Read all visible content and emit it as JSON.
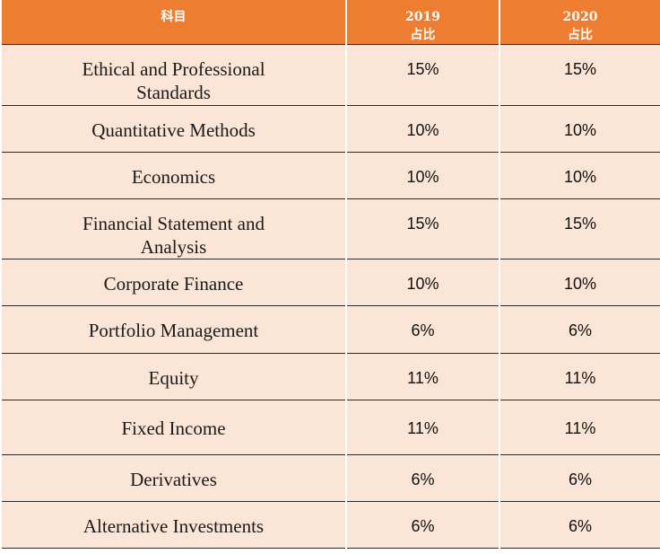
{
  "header": {
    "subject": "科目",
    "col_2019_year": "2019",
    "col_2019_label": "占比",
    "col_2020_year": "2020",
    "col_2020_label": "占比"
  },
  "rows": [
    {
      "subject": "Ethical and Professional Standards",
      "y2019": "15%",
      "y2020": "15%"
    },
    {
      "subject": "Quantitative Methods",
      "y2019": "10%",
      "y2020": "10%"
    },
    {
      "subject": "Economics",
      "y2019": "10%",
      "y2020": "10%"
    },
    {
      "subject": "Financial Statement and Analysis",
      "y2019": "15%",
      "y2020": "15%"
    },
    {
      "subject": "Corporate Finance",
      "y2019": "10%",
      "y2020": "10%"
    },
    {
      "subject": "Portfolio Management",
      "y2019": "6%",
      "y2020": "6%"
    },
    {
      "subject": "Equity",
      "y2019": "11%",
      "y2020": "11%"
    },
    {
      "subject": "Fixed Income",
      "y2019": "11%",
      "y2020": "11%"
    },
    {
      "subject": "Derivatives",
      "y2019": "6%",
      "y2020": "6%"
    },
    {
      "subject": "Alternative Investments",
      "y2019": "6%",
      "y2020": "6%"
    }
  ]
}
